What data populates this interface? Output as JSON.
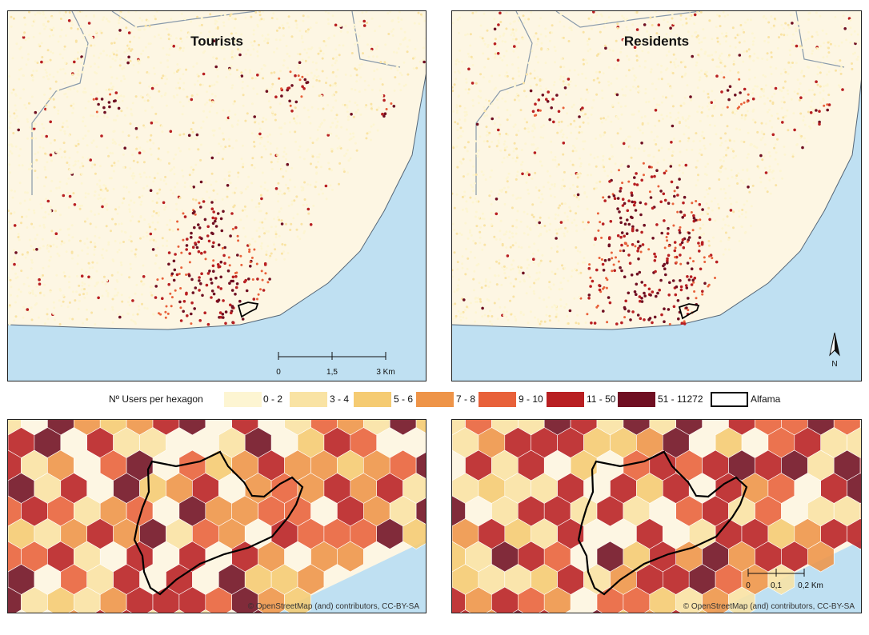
{
  "maps": {
    "tourists": {
      "title": "Tourists"
    },
    "residents": {
      "title": "Residents"
    }
  },
  "scalebar_top": {
    "ticks": [
      "0",
      "1,5",
      "3 Km"
    ]
  },
  "north_arrow": {
    "label": "N",
    "icon": "north-arrow-icon"
  },
  "legend": {
    "title": "Nº Users per hexagon",
    "classes": [
      {
        "label": "0 - 2",
        "color": "#fdf5d2"
      },
      {
        "label": "3 - 4",
        "color": "#f9e3a4"
      },
      {
        "label": "5 - 6",
        "color": "#f5cb72"
      },
      {
        "label": "7 - 8",
        "color": "#ee9448"
      },
      {
        "label": "9 - 10",
        "color": "#e8613a"
      },
      {
        "label": "11 - 50",
        "color": "#b81f22"
      },
      {
        "label": "51 - 11272",
        "color": "#6f0f22"
      }
    ],
    "boundary_label": "Alfama"
  },
  "scalebar_bottom": {
    "ticks": [
      "0",
      "0,1",
      "0,2 Km"
    ]
  },
  "credits": {
    "left": "© OpenStreetMap (and) contributors, CC-BY-SA",
    "right": "© OpenStreetMap (and) contributors, CC-BY-SA"
  },
  "colors": {
    "water": "#bfe0f2",
    "land": "#fdf6e3",
    "coastline": "#556677"
  }
}
